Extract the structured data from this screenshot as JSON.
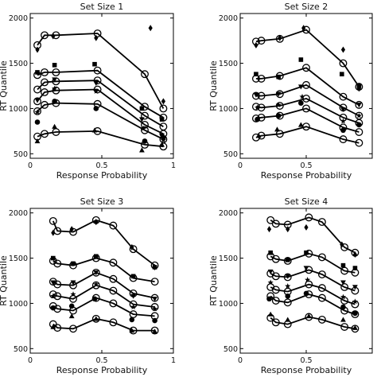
{
  "chart_data": [
    {
      "type": "line",
      "title": "Set Size 1",
      "xlabel": "Response Probability",
      "ylabel": "RT Quantile",
      "xlim": [
        0,
        1
      ],
      "ylim": [
        450,
        2050
      ],
      "xticks": [
        0,
        0.5,
        1
      ],
      "xtick_labels": [
        "0",
        "0.5",
        "1"
      ],
      "yticks": [
        500,
        1000,
        1500,
        2000
      ],
      "ytick_labels": [
        "500",
        "1000",
        "1500",
        "2000"
      ],
      "grid": false,
      "series": [
        {
          "marker": "circle",
          "x": [
            0.05,
            0.1,
            0.18,
            0.47,
            0.8,
            0.93
          ],
          "y": [
            690,
            720,
            740,
            750,
            600,
            580
          ]
        },
        {
          "marker": "circle",
          "x": [
            0.05,
            0.1,
            0.18,
            0.47,
            0.8,
            0.93
          ],
          "y": [
            970,
            1040,
            1060,
            1050,
            760,
            660
          ]
        },
        {
          "marker": "circle",
          "x": [
            0.05,
            0.1,
            0.18,
            0.47,
            0.8,
            0.93
          ],
          "y": [
            1080,
            1180,
            1200,
            1210,
            820,
            720
          ]
        },
        {
          "marker": "circle",
          "x": [
            0.05,
            0.1,
            0.18,
            0.47,
            0.8,
            0.93
          ],
          "y": [
            1210,
            1290,
            1300,
            1310,
            920,
            800
          ]
        },
        {
          "marker": "circle",
          "x": [
            0.05,
            0.1,
            0.18,
            0.47,
            0.8,
            0.93
          ],
          "y": [
            1370,
            1400,
            1400,
            1420,
            1020,
            900
          ]
        },
        {
          "marker": "circle",
          "x": [
            0.05,
            0.1,
            0.18,
            0.47,
            0.8,
            0.93
          ],
          "y": [
            1700,
            1810,
            1810,
            1830,
            1380,
            1000
          ]
        }
      ],
      "observed": [
        {
          "marker": "triangle",
          "x": [
            0.05,
            0.17,
            0.45,
            0.78,
            0.92
          ],
          "y": [
            640,
            800,
            760,
            540,
            600
          ]
        },
        {
          "marker": "circle-filled",
          "x": [
            0.05,
            0.17,
            0.46,
            0.8,
            0.93
          ],
          "y": [
            850,
            1080,
            1000,
            640,
            680
          ]
        },
        {
          "marker": "star",
          "x": [
            0.05,
            0.17,
            0.46,
            0.79,
            0.93
          ],
          "y": [
            960,
            1220,
            1190,
            780,
            650
          ]
        },
        {
          "marker": "triangle-down",
          "x": [
            0.05,
            0.17,
            0.46,
            0.78,
            0.92
          ],
          "y": [
            1090,
            1320,
            1280,
            880,
            700
          ]
        },
        {
          "marker": "square",
          "x": [
            0.05,
            0.17,
            0.45,
            0.78,
            0.92
          ],
          "y": [
            1400,
            1480,
            1490,
            1000,
            880
          ]
        },
        {
          "marker": "diamond",
          "x": [
            0.05,
            0.16,
            0.46,
            0.84,
            0.93
          ],
          "y": [
            1650,
            1800,
            1780,
            1890,
            1080
          ]
        }
      ]
    },
    {
      "type": "line",
      "title": "Set Size 2",
      "xlabel": "Response Probability",
      "ylabel": "RT Quantile",
      "xlim": [
        0,
        1
      ],
      "ylim": [
        450,
        2050
      ],
      "xticks": [
        0,
        0.5
      ],
      "xtick_labels": [
        "0",
        "0.5"
      ],
      "yticks": [
        500,
        1000,
        1500,
        2000
      ],
      "ytick_labels": [
        "500",
        "1000",
        "1500",
        "2000"
      ],
      "grid": false,
      "series": [
        {
          "marker": "circle",
          "x": [
            0.12,
            0.16,
            0.3,
            0.5,
            0.78,
            0.9
          ],
          "y": [
            680,
            700,
            720,
            800,
            660,
            620
          ]
        },
        {
          "marker": "circle",
          "x": [
            0.12,
            0.16,
            0.3,
            0.5,
            0.78,
            0.9
          ],
          "y": [
            890,
            900,
            920,
            1000,
            790,
            740
          ]
        },
        {
          "marker": "circle",
          "x": [
            0.12,
            0.16,
            0.3,
            0.5,
            0.78,
            0.9
          ],
          "y": [
            1020,
            1010,
            1030,
            1110,
            900,
            840
          ]
        },
        {
          "marker": "circle",
          "x": [
            0.12,
            0.16,
            0.3,
            0.5,
            0.78,
            0.9
          ],
          "y": [
            1140,
            1140,
            1160,
            1260,
            1010,
            920
          ]
        },
        {
          "marker": "circle",
          "x": [
            0.12,
            0.16,
            0.3,
            0.5,
            0.78,
            0.9
          ],
          "y": [
            1330,
            1330,
            1360,
            1450,
            1130,
            1040
          ]
        },
        {
          "marker": "circle",
          "x": [
            0.12,
            0.16,
            0.3,
            0.5,
            0.78,
            0.9
          ],
          "y": [
            1740,
            1750,
            1770,
            1870,
            1500,
            1240
          ]
        }
      ],
      "observed": [
        {
          "marker": "triangle",
          "x": [
            0.14,
            0.28,
            0.46
          ],
          "y": [
            700,
            770,
            820
          ]
        },
        {
          "marker": "circle-filled",
          "x": [
            0.13,
            0.29,
            0.46,
            0.78,
            0.9
          ],
          "y": [
            880,
            920,
            1060,
            760,
            820
          ]
        },
        {
          "marker": "star",
          "x": [
            0.13,
            0.29,
            0.47,
            0.78,
            0.9
          ],
          "y": [
            1010,
            1040,
            1130,
            860,
            920
          ]
        },
        {
          "marker": "triangle-down",
          "x": [
            0.12,
            0.29,
            0.46,
            0.78,
            0.9
          ],
          "y": [
            1150,
            1160,
            1240,
            990,
            1040
          ]
        },
        {
          "marker": "square",
          "x": [
            0.12,
            0.29,
            0.46,
            0.77,
            0.9
          ],
          "y": [
            1380,
            1350,
            1540,
            1380,
            1250
          ]
        },
        {
          "marker": "diamond",
          "x": [
            0.12,
            0.3,
            0.48,
            0.78,
            0.9
          ],
          "y": [
            1700,
            1780,
            1890,
            1650,
            1220
          ]
        }
      ]
    },
    {
      "type": "line",
      "title": "Set Size 3",
      "xlabel": "Response Probability",
      "ylabel": "RT Quantile",
      "xlim": [
        0,
        1
      ],
      "ylim": [
        450,
        2050
      ],
      "xticks": [
        0,
        0.5,
        1
      ],
      "xtick_labels": [
        "0",
        "0.5",
        "1"
      ],
      "yticks": [
        500,
        1000,
        1500,
        2000
      ],
      "ytick_labels": [
        "500",
        "1000",
        "1500",
        "2000"
      ],
      "grid": false,
      "series": [
        {
          "marker": "circle",
          "x": [
            0.16,
            0.19,
            0.3,
            0.46,
            0.58,
            0.72,
            0.87
          ],
          "y": [
            770,
            730,
            720,
            830,
            790,
            700,
            700
          ]
        },
        {
          "marker": "circle",
          "x": [
            0.16,
            0.19,
            0.3,
            0.46,
            0.58,
            0.72,
            0.87
          ],
          "y": [
            970,
            940,
            920,
            1060,
            1000,
            880,
            860
          ]
        },
        {
          "marker": "circle",
          "x": [
            0.16,
            0.19,
            0.3,
            0.46,
            0.58,
            0.72,
            0.87
          ],
          "y": [
            1100,
            1080,
            1050,
            1200,
            1140,
            990,
            960
          ]
        },
        {
          "marker": "circle",
          "x": [
            0.16,
            0.19,
            0.3,
            0.46,
            0.58,
            0.72,
            0.87
          ],
          "y": [
            1240,
            1210,
            1200,
            1340,
            1270,
            1110,
            1060
          ]
        },
        {
          "marker": "circle",
          "x": [
            0.16,
            0.19,
            0.3,
            0.46,
            0.58,
            0.72,
            0.87
          ],
          "y": [
            1470,
            1440,
            1420,
            1500,
            1450,
            1280,
            1240
          ]
        },
        {
          "marker": "circle",
          "x": [
            0.16,
            0.19,
            0.3,
            0.46,
            0.58,
            0.72,
            0.87
          ],
          "y": [
            1910,
            1800,
            1790,
            1920,
            1860,
            1600,
            1420
          ]
        }
      ],
      "observed": [
        {
          "marker": "triangle",
          "x": [
            0.16,
            0.29,
            0.46,
            0.71,
            0.87
          ],
          "y": [
            740,
            860,
            830,
            700,
            690
          ]
        },
        {
          "marker": "circle-filled",
          "x": [
            0.16,
            0.29,
            0.45,
            0.71,
            0.87
          ],
          "y": [
            950,
            970,
            1050,
            820,
            810
          ]
        },
        {
          "marker": "star",
          "x": [
            0.16,
            0.3,
            0.46,
            0.72,
            0.87
          ],
          "y": [
            1080,
            1100,
            1210,
            960,
            940
          ]
        },
        {
          "marker": "triangle-down",
          "x": [
            0.16,
            0.3,
            0.46,
            0.72,
            0.87
          ],
          "y": [
            1230,
            1230,
            1340,
            1080,
            1050
          ]
        },
        {
          "marker": "square",
          "x": [
            0.16,
            0.3,
            0.46,
            0.72,
            0.87
          ],
          "y": [
            1500,
            1440,
            1520,
            1300,
            1400
          ]
        },
        {
          "marker": "diamond",
          "x": [
            0.16,
            0.29,
            0.46,
            0.71,
            0.87
          ],
          "y": [
            1780,
            1820,
            1900,
            1620,
            1400
          ]
        }
      ]
    },
    {
      "type": "line",
      "title": "Set Size 4",
      "xlabel": "Response Probability",
      "ylabel": "RT Quantile",
      "xlim": [
        0,
        1
      ],
      "ylim": [
        450,
        2050
      ],
      "xticks": [
        0,
        0.5
      ],
      "xtick_labels": [
        "0",
        "0.5"
      ],
      "yticks": [
        500,
        1000,
        1500,
        2000
      ],
      "ytick_labels": [
        "500",
        "1000",
        "1500",
        "2000"
      ],
      "grid": false,
      "series": [
        {
          "marker": "circle",
          "x": [
            0.23,
            0.27,
            0.36,
            0.52,
            0.62,
            0.79,
            0.87
          ],
          "y": [
            840,
            790,
            770,
            850,
            820,
            740,
            720
          ]
        },
        {
          "marker": "circle",
          "x": [
            0.23,
            0.27,
            0.36,
            0.52,
            0.62,
            0.79,
            0.87
          ],
          "y": [
            1080,
            1030,
            1010,
            1100,
            1060,
            920,
            880
          ]
        },
        {
          "marker": "circle",
          "x": [
            0.23,
            0.27,
            0.36,
            0.52,
            0.62,
            0.79,
            0.87
          ],
          "y": [
            1180,
            1150,
            1130,
            1210,
            1170,
            1030,
            990
          ]
        },
        {
          "marker": "circle",
          "x": [
            0.23,
            0.27,
            0.36,
            0.52,
            0.62,
            0.79,
            0.87
          ],
          "y": [
            1330,
            1300,
            1290,
            1370,
            1320,
            1180,
            1140
          ]
        },
        {
          "marker": "circle",
          "x": [
            0.23,
            0.27,
            0.36,
            0.52,
            0.62,
            0.79,
            0.87
          ],
          "y": [
            1520,
            1490,
            1470,
            1550,
            1510,
            1360,
            1340
          ]
        },
        {
          "marker": "circle",
          "x": [
            0.23,
            0.27,
            0.36,
            0.52,
            0.62,
            0.79,
            0.87
          ],
          "y": [
            1920,
            1880,
            1870,
            1950,
            1900,
            1620,
            1560
          ]
        }
      ],
      "observed": [
        {
          "marker": "triangle",
          "x": [
            0.23,
            0.36,
            0.52,
            0.78,
            0.87
          ],
          "y": [
            880,
            820,
            860,
            820,
            730
          ]
        },
        {
          "marker": "circle-filled",
          "x": [
            0.22,
            0.36,
            0.5,
            0.78,
            0.87
          ],
          "y": [
            1050,
            1080,
            1110,
            960,
            890
          ]
        },
        {
          "marker": "star",
          "x": [
            0.23,
            0.36,
            0.51,
            0.78,
            0.87
          ],
          "y": [
            1230,
            1190,
            1260,
            1070,
            1020
          ]
        },
        {
          "marker": "triangle-down",
          "x": [
            0.23,
            0.36,
            0.5,
            0.78,
            0.87
          ],
          "y": [
            1350,
            1300,
            1390,
            1230,
            1180
          ]
        },
        {
          "marker": "square",
          "x": [
            0.23,
            0.36,
            0.5,
            0.78,
            0.87
          ],
          "y": [
            1560,
            1480,
            1560,
            1420,
            1390
          ]
        },
        {
          "marker": "diamond",
          "x": [
            0.22,
            0.36,
            0.5,
            0.77,
            0.87
          ],
          "y": [
            1820,
            1820,
            1840,
            1650,
            1540
          ]
        }
      ]
    }
  ]
}
